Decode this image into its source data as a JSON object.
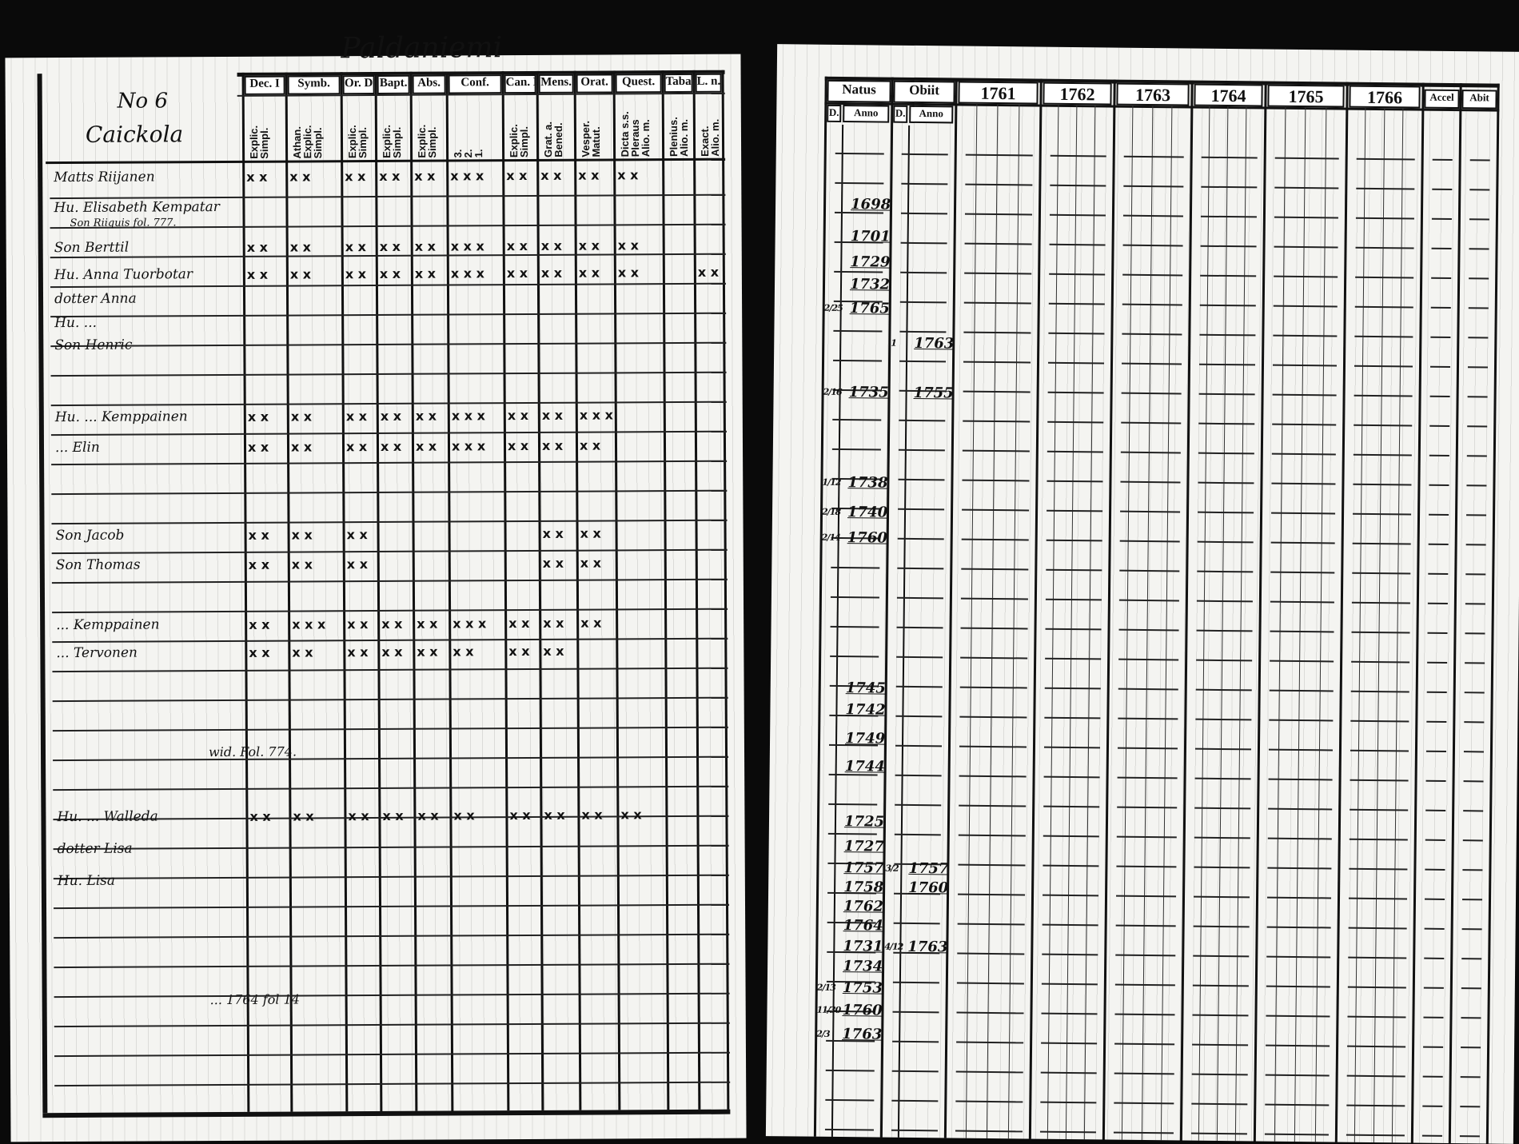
{
  "left_page": {
    "village_title": "Paldaniemi",
    "house_number": "No 6",
    "house_name": "Caickola",
    "column_headers": [
      "Dec. I",
      "Symb.",
      "Or. D",
      "Bapt.",
      "Abs.",
      "Conf.",
      "Can. D",
      "Mens.",
      "Orat.",
      "Quest.",
      "Taba",
      "L. n."
    ],
    "column_subheaders": [
      "Explic.\nSimpl.",
      "Athan.\nExplic.\nSimpl.",
      "Explic.\nSimpl.",
      "Explic.\nSimpl.",
      "Explic.\nSimpl.",
      "3.\n2.\n1.",
      "Explic.\nSimpl.",
      "Grat. a.\nBened.",
      "Vesper.\nMatut.",
      "Dicta s.s.\nPleraus\nAlio. m.",
      "Plenius.\nAlio. m.",
      "Exact.\nAlio. m."
    ],
    "rows": [
      {
        "name": "Matts Riijanen",
        "marks": [
          "x x",
          "x x",
          "x x",
          "x x",
          "x x",
          "x x x",
          "x x",
          "x x",
          "x x",
          "x x",
          "",
          ""
        ]
      },
      {
        "name": "Hu. Elisabeth Kempatar",
        "note": "Son Riiquis fol. 777.",
        "marks": [
          "",
          "",
          "",
          "",
          "",
          "",
          "",
          "",
          "",
          "",
          "",
          ""
        ]
      },
      {
        "name": "Son Berttil",
        "marks": [
          "x x",
          "x x",
          "x x",
          "x x",
          "x x",
          "x x x",
          "x x",
          "x x",
          "x x",
          "x x",
          "",
          ""
        ]
      },
      {
        "name": "Hu. Anna Tuorbotar",
        "marks": [
          "x x",
          "x x",
          "x x",
          "x x",
          "x x",
          "x x x",
          "x x",
          "x x",
          "x x",
          "x x",
          "",
          "x x"
        ]
      },
      {
        "name": "dotter Anna",
        "marks": [
          "",
          "",
          "",
          "",
          "",
          "",
          "",
          "",
          "",
          "",
          "",
          ""
        ]
      },
      {
        "name": "Hu. ...",
        "marks": [
          "",
          "",
          "",
          "",
          "",
          "",
          "",
          "",
          "",
          "",
          "",
          ""
        ]
      },
      {
        "name": "Son Henric",
        "marks": [
          "",
          "",
          "",
          "",
          "",
          "",
          "",
          "",
          "",
          "",
          "",
          ""
        ]
      },
      {
        "name": "Hu. ... Kemppainen",
        "marks": [
          "x x",
          "x x",
          "x x",
          "x x",
          "x x",
          "x x x",
          "x x",
          "x x",
          "x x x",
          "",
          "",
          ""
        ]
      },
      {
        "name": "... Elin",
        "marks": [
          "x x",
          "x x",
          "x x",
          "x x",
          "x x",
          "x x x",
          "x x",
          "x x",
          "x x",
          "",
          "",
          ""
        ]
      },
      {
        "name": "Son Jacob",
        "marks": [
          "x x",
          "x x",
          "x x",
          "",
          "",
          "",
          "",
          "x x",
          "x x",
          "",
          "",
          ""
        ]
      },
      {
        "name": "Son Thomas",
        "marks": [
          "x x",
          "x x",
          "x x",
          "",
          "",
          "",
          "",
          "x x",
          "x x",
          "",
          "",
          ""
        ]
      },
      {
        "name": "... Kemppainen",
        "marks": [
          "x x",
          "x x x",
          "x x",
          "x x",
          "x x",
          "x x x",
          "x x",
          "x x",
          "x x",
          "",
          "",
          ""
        ]
      },
      {
        "name": "... Tervonen",
        "marks": [
          "x x",
          "x x",
          "x x",
          "x x",
          "x x",
          "x x",
          "x x",
          "x x",
          "",
          "",
          "",
          ""
        ]
      },
      {
        "name": "Hu. ... Walleda",
        "marks": [
          "x x",
          "x x",
          "x x",
          "x x",
          "x x",
          "x x",
          "x x",
          "x x",
          "x x",
          "x x",
          "",
          ""
        ]
      },
      {
        "name": "dotter Lisa",
        "marks": [
          "",
          "",
          "",
          "",
          "",
          "",
          "",
          "",
          "",
          "",
          "",
          ""
        ]
      },
      {
        "name": "Hu. Lisa",
        "marks": [
          "",
          "",
          "",
          "",
          "",
          "",
          "",
          "",
          "",
          "",
          "",
          ""
        ]
      }
    ],
    "remark_1": "wid. Fol. 774.",
    "remark_2": "... 1764 fol 14"
  },
  "right_page": {
    "headers": {
      "natus": "Natus",
      "obiit": "Obiit",
      "years": [
        "1761",
        "1762",
        "1763",
        "1764",
        "1765",
        "1766"
      ],
      "accel": "Accel",
      "abit": "Abit"
    },
    "subheaders": {
      "natus_day": "D.",
      "natus_anno": "Anno",
      "obiit_day": "D.",
      "obiit_anno": "Anno"
    },
    "entries": [
      {
        "born_day": "",
        "born_year": "1698",
        "died_day": "",
        "died_year": ""
      },
      {
        "born_day": "",
        "born_year": "1701",
        "died_day": "",
        "died_year": ""
      },
      {
        "born_day": "",
        "born_year": "1729",
        "died_day": "",
        "died_year": ""
      },
      {
        "born_day": "",
        "born_year": "1732",
        "died_day": "",
        "died_year": ""
      },
      {
        "born_day": "2/25",
        "born_year": "1765",
        "died_day": "",
        "died_year": ""
      },
      {
        "born_day": "",
        "born_year": "",
        "died_day": "1",
        "died_year": "1763"
      },
      {
        "born_day": "2/16",
        "born_year": "1735",
        "died_day": "",
        "died_year": "1755"
      },
      {
        "born_day": "1/12",
        "born_year": "1738",
        "died_day": "",
        "died_year": ""
      },
      {
        "born_day": "2/18",
        "born_year": "1740",
        "died_day": "",
        "died_year": ""
      },
      {
        "born_day": "2/14",
        "born_year": "1760",
        "died_day": "",
        "died_year": ""
      },
      {
        "born_day": "",
        "born_year": "1745",
        "died_day": "",
        "died_year": ""
      },
      {
        "born_day": "",
        "born_year": "1742",
        "died_day": "",
        "died_year": ""
      },
      {
        "born_day": "",
        "born_year": "1749",
        "died_day": "",
        "died_year": ""
      },
      {
        "born_day": "",
        "born_year": "1744",
        "died_day": "",
        "died_year": ""
      },
      {
        "born_day": "",
        "born_year": "1725",
        "died_day": "",
        "died_year": ""
      },
      {
        "born_day": "",
        "born_year": "1727",
        "died_day": "",
        "died_year": ""
      },
      {
        "born_day": "",
        "born_year": "1757",
        "died_day": "3/2",
        "died_year": "1757"
      },
      {
        "born_day": "",
        "born_year": "1758",
        "died_day": "",
        "died_year": "1760"
      },
      {
        "born_day": "",
        "born_year": "1762",
        "died_day": "",
        "died_year": ""
      },
      {
        "born_day": "",
        "born_year": "1764",
        "died_day": "",
        "died_year": ""
      },
      {
        "born_day": "",
        "born_year": "1731",
        "died_day": "4/12",
        "died_year": "1763"
      },
      {
        "born_day": "",
        "born_year": "1734",
        "died_day": "",
        "died_year": ""
      },
      {
        "born_day": "2/13",
        "born_year": "1753",
        "died_day": "",
        "died_year": ""
      },
      {
        "born_day": "11/30",
        "born_year": "1760",
        "died_day": "",
        "died_year": ""
      },
      {
        "born_day": "2/3",
        "born_year": "1763",
        "died_day": "",
        "died_year": ""
      }
    ]
  }
}
